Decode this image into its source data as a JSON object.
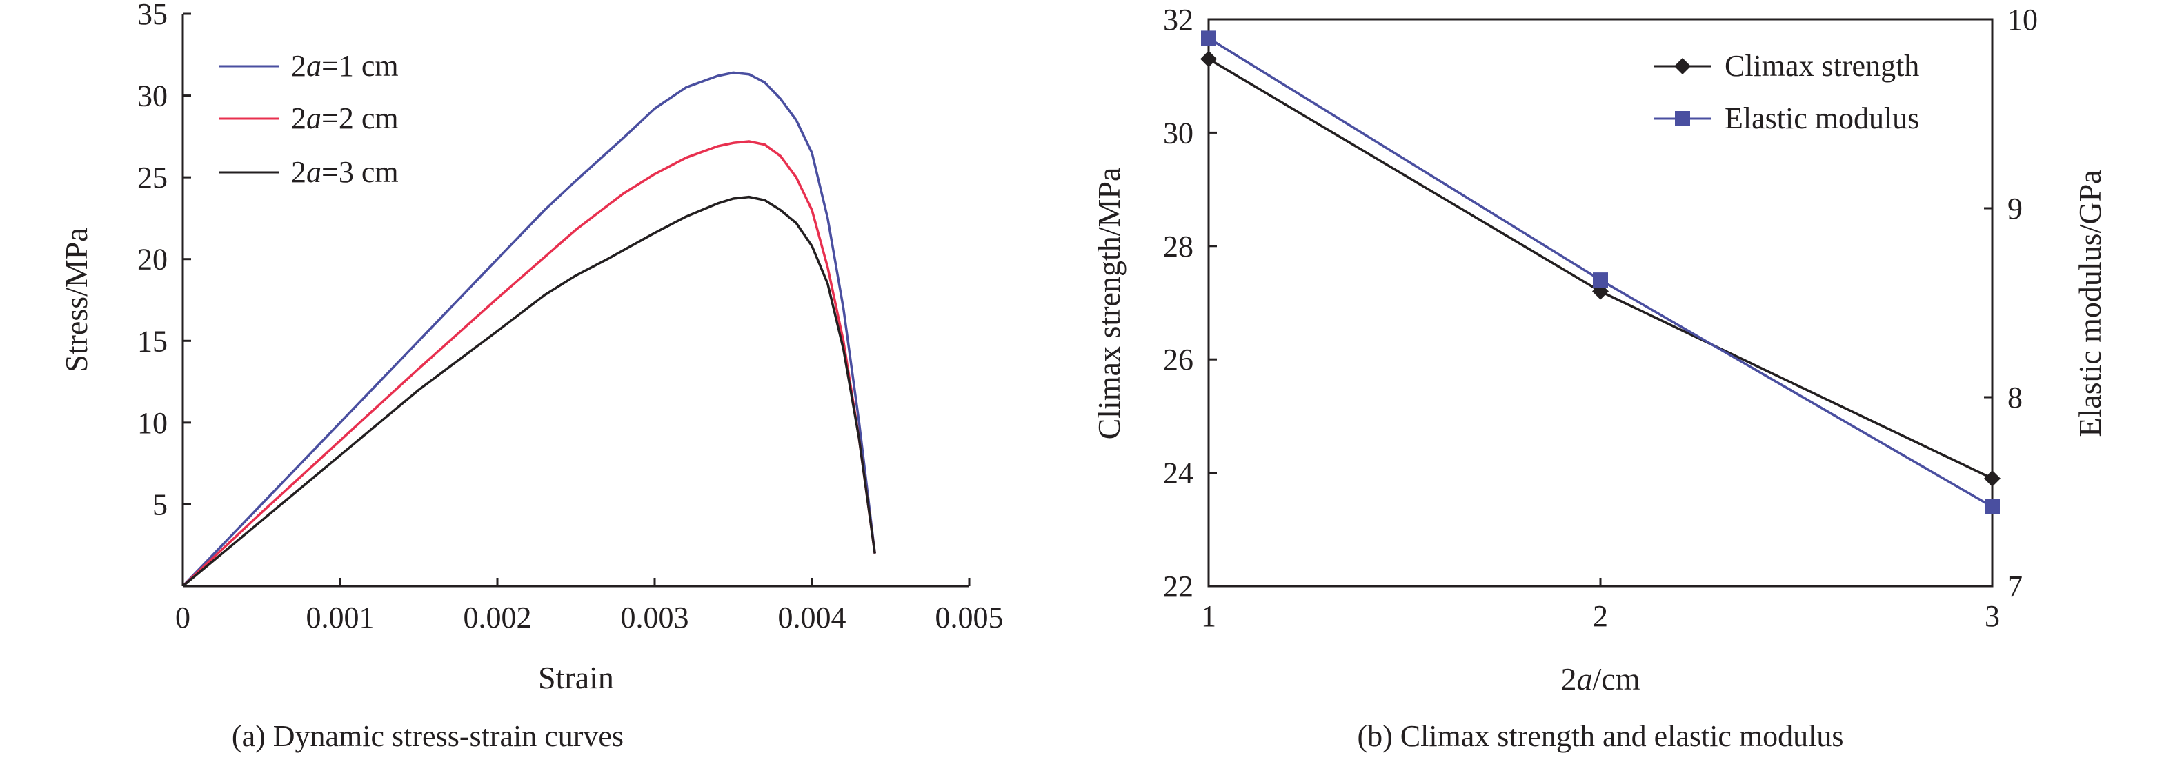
{
  "chart_data": [
    {
      "type": "line",
      "caption": "(a) Dynamic stress-strain curves",
      "xlabel": "Strain",
      "ylabel": "Stress/MPa",
      "xlim": [
        0,
        0.005
      ],
      "ylim": [
        0,
        35
      ],
      "xticks": [
        "0",
        "0.001",
        "0.002",
        "0.003",
        "0.004",
        "0.005"
      ],
      "yticks": [
        "5",
        "10",
        "15",
        "20",
        "25",
        "30",
        "35"
      ],
      "legend_position": "top-left",
      "series": [
        {
          "name_prefix": "2",
          "name_var": "a",
          "name_suffix": "=1 cm",
          "color": "#4a4fa0",
          "x": [
            0,
            0.0005,
            0.001,
            0.0015,
            0.002,
            0.0023,
            0.0025,
            0.0028,
            0.003,
            0.0032,
            0.0034,
            0.0035,
            0.0036,
            0.0037,
            0.0038,
            0.0039,
            0.004,
            0.0041,
            0.0042,
            0.0043,
            0.0044
          ],
          "y": [
            0,
            5,
            10,
            15,
            20,
            23,
            24.8,
            27.4,
            29.2,
            30.5,
            31.2,
            31.4,
            31.3,
            30.8,
            29.8,
            28.5,
            26.5,
            22.5,
            17,
            10,
            2
          ]
        },
        {
          "name_prefix": "2",
          "name_var": "a",
          "name_suffix": "=2 cm",
          "color": "#e8304f",
          "x": [
            0,
            0.0005,
            0.001,
            0.0015,
            0.002,
            0.0025,
            0.0028,
            0.003,
            0.0032,
            0.0034,
            0.0035,
            0.0036,
            0.0037,
            0.0038,
            0.0039,
            0.004,
            0.0041,
            0.0042,
            0.0043,
            0.0044
          ],
          "y": [
            0,
            4.5,
            8.9,
            13.3,
            17.6,
            21.8,
            24,
            25.2,
            26.2,
            26.9,
            27.1,
            27.2,
            27,
            26.3,
            25,
            23,
            19.5,
            15,
            9,
            2
          ]
        },
        {
          "name_prefix": "2",
          "name_var": "a",
          "name_suffix": "=3 cm",
          "color": "#231f20",
          "x": [
            0,
            0.0005,
            0.001,
            0.0015,
            0.002,
            0.0023,
            0.0025,
            0.0027,
            0.003,
            0.0032,
            0.0034,
            0.0035,
            0.0036,
            0.0037,
            0.0038,
            0.0039,
            0.004,
            0.0041,
            0.0042,
            0.0043,
            0.0044
          ],
          "y": [
            0,
            4,
            8,
            12,
            15.6,
            17.8,
            19,
            20,
            21.6,
            22.6,
            23.4,
            23.7,
            23.8,
            23.6,
            23,
            22.2,
            20.8,
            18.5,
            14.5,
            9,
            2
          ]
        }
      ]
    },
    {
      "type": "line",
      "caption": "(b) Climax strength and elastic modulus",
      "xlabel_prefix": "2",
      "xlabel_var": "a",
      "xlabel_suffix": "/cm",
      "ylabel": "Climax strength/MPa",
      "y2label": "Elastic modulus/GPa",
      "xlim": [
        1,
        3
      ],
      "ylim": [
        22,
        32
      ],
      "y2lim": [
        7,
        10
      ],
      "xticks": [
        "1",
        "2",
        "3"
      ],
      "yticks": [
        "22",
        "24",
        "26",
        "28",
        "30",
        "32"
      ],
      "y2ticks": [
        "7",
        "8",
        "9",
        "10"
      ],
      "legend_position": "top-right",
      "series": [
        {
          "name": "Climax strength",
          "axis": "left",
          "marker": "diamond",
          "color": "#231f20",
          "x": [
            1,
            2,
            3
          ],
          "y": [
            31.3,
            27.2,
            23.9
          ]
        },
        {
          "name": "Elastic modulus",
          "axis": "right",
          "marker": "square",
          "color": "#4a4fa0",
          "x": [
            1,
            2,
            3
          ],
          "y": [
            9.9,
            8.62,
            7.42
          ]
        }
      ]
    }
  ]
}
